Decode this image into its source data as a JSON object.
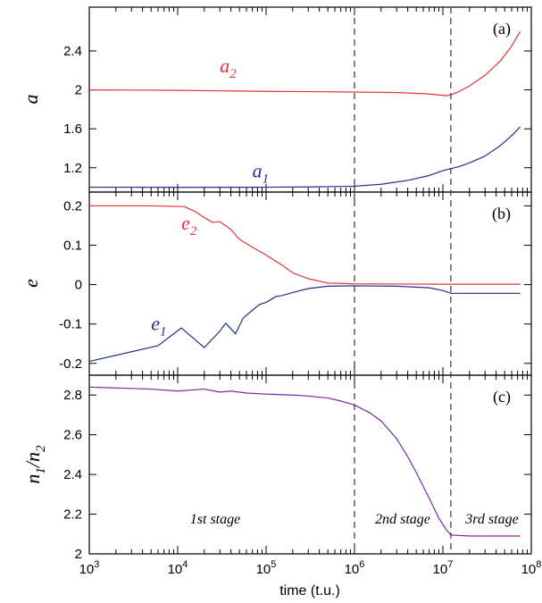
{
  "chart_data": [
    {
      "panel": "(a)",
      "type": "line",
      "ylabel": "a",
      "xlog": true,
      "xlim": [
        1000,
        100000000
      ],
      "ylim": [
        0.95,
        2.85
      ],
      "yticks": [
        1.2,
        1.6,
        2,
        2.4
      ],
      "ytick_labels": [
        "1.2",
        "1.6",
        "2",
        "2.4"
      ],
      "series": [
        {
          "name": "a2",
          "label_main": "a",
          "label_sub": "2",
          "label_at": [
            30000,
            2.18
          ],
          "color": "#e8323b",
          "x": [
            1000,
            3000,
            10000,
            30000,
            100000,
            300000,
            1000000,
            3000000,
            6000000,
            9000000,
            11000000,
            12300000,
            15000000,
            20000000,
            30000000,
            45000000,
            60000000,
            75000000
          ],
          "y": [
            2.0,
            1.998,
            1.995,
            1.99,
            1.985,
            1.982,
            1.978,
            1.972,
            1.962,
            1.948,
            1.94,
            1.95,
            1.98,
            2.04,
            2.15,
            2.3,
            2.45,
            2.6
          ]
        },
        {
          "name": "a1",
          "label_main": "a",
          "label_sub": "1",
          "label_at": [
            70000,
            1.1
          ],
          "color": "#1f2f85",
          "x": [
            1000,
            3000,
            10000,
            30000,
            100000,
            300000,
            1000000,
            2000000,
            4000000,
            7000000,
            10000000,
            12300000,
            15000000,
            20000000,
            30000000,
            45000000,
            60000000,
            75000000
          ],
          "y": [
            1.0,
            1.0,
            0.998,
            0.999,
            1.0,
            1.003,
            1.01,
            1.03,
            1.07,
            1.12,
            1.17,
            1.19,
            1.21,
            1.25,
            1.32,
            1.43,
            1.53,
            1.62
          ]
        }
      ]
    },
    {
      "panel": "(b)",
      "type": "line",
      "ylabel": "e",
      "xlog": true,
      "xlim": [
        1000,
        100000000
      ],
      "ylim": [
        -0.23,
        0.235
      ],
      "yticks": [
        -0.2,
        -0.1,
        0,
        0.1,
        0.2
      ],
      "ytick_labels": [
        "-0.2",
        "-0.1",
        "0",
        "0.1",
        "0.2"
      ],
      "series": [
        {
          "name": "e2",
          "label_main": "e",
          "label_sub": "2",
          "label_at": [
            11000,
            0.14
          ],
          "color": "#e8323b",
          "x": [
            1000,
            5000,
            12000,
            16000,
            20000,
            25000,
            30000,
            40000,
            50000,
            70000,
            100000,
            150000,
            200000,
            300000,
            500000,
            1000000,
            3000000,
            10000000,
            12300000,
            30000000,
            75000000
          ],
          "y": [
            0.2,
            0.2,
            0.198,
            0.185,
            0.17,
            0.158,
            0.16,
            0.14,
            0.115,
            0.095,
            0.075,
            0.05,
            0.03,
            0.015,
            0.004,
            0.002,
            0.0015,
            0.001,
            0.001,
            0.001,
            0.001
          ]
        },
        {
          "name": "e1",
          "label_main": "e",
          "label_sub": "1",
          "label_at": [
            5000,
            -0.115
          ],
          "color": "#1f2f85",
          "x": [
            1000,
            6000,
            11000,
            20000,
            30000,
            35000,
            45000,
            55000,
            70000,
            85000,
            100000,
            130000,
            150000,
            200000,
            300000,
            500000,
            1000000,
            3000000,
            7000000,
            10000000,
            12300000,
            20000000,
            75000000
          ],
          "y": [
            -0.195,
            -0.155,
            -0.11,
            -0.16,
            -0.118,
            -0.098,
            -0.125,
            -0.085,
            -0.065,
            -0.05,
            -0.045,
            -0.03,
            -0.028,
            -0.02,
            -0.01,
            -0.004,
            -0.003,
            -0.004,
            -0.008,
            -0.015,
            -0.022,
            -0.022,
            -0.022
          ]
        }
      ]
    },
    {
      "panel": "(c)",
      "type": "line",
      "ylabel_main": "n",
      "ylabel_sub1": "1",
      "ylabel_mid": "/n",
      "ylabel_sub2": "2",
      "xlabel": "time (t.u.)",
      "xlog": true,
      "xlim": [
        1000,
        100000000
      ],
      "xtick_exponents": [
        "3",
        "4",
        "5",
        "6",
        "7",
        "8"
      ],
      "ylim": [
        2.0,
        2.9
      ],
      "yticks": [
        2.0,
        2.2,
        2.4,
        2.6,
        2.8
      ],
      "ytick_labels": [
        "2",
        "2.2",
        "2.4",
        "2.6",
        "2.8"
      ],
      "series": [
        {
          "name": "n1/n2",
          "color": "#7a2a9a",
          "x": [
            1000,
            5000,
            10000,
            20000,
            30000,
            40000,
            60000,
            100000,
            200000,
            300000,
            500000,
            700000,
            1000000,
            1500000,
            2000000,
            3000000,
            4000000,
            5000000,
            7000000,
            9000000,
            11000000,
            12300000,
            20000000,
            75000000
          ],
          "y": [
            2.84,
            2.83,
            2.82,
            2.83,
            2.815,
            2.82,
            2.81,
            2.805,
            2.8,
            2.795,
            2.785,
            2.77,
            2.75,
            2.71,
            2.67,
            2.58,
            2.49,
            2.41,
            2.28,
            2.18,
            2.12,
            2.095,
            2.09,
            2.09
          ]
        }
      ]
    }
  ],
  "panel_tags": [
    "(a)",
    "(b)",
    "(c)"
  ],
  "stages": [
    "1st stage",
    "2nd stage",
    "3rd stage"
  ],
  "stage_markers_x": [
    1000000,
    12300000
  ],
  "tick_base": "10",
  "dash_color": "#333333"
}
